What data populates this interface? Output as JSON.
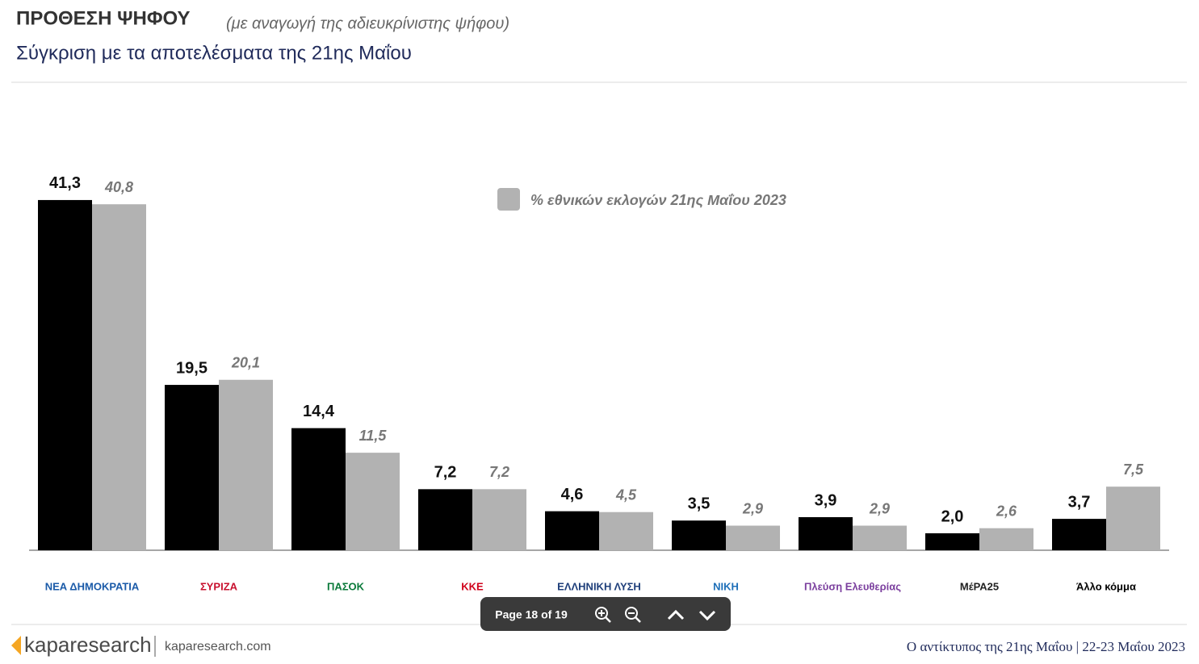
{
  "chart_data": {
    "type": "bar",
    "title": "ΠΡΟΘΕΣΗ ΨΗΦΟΥ",
    "title_note": "(με αναγωγή της αδιευκρίνιστης ψήφου)",
    "subtitle": "Σύγκριση με τα αποτελέσματα της 21ης Μαΐου",
    "categories": [
      "ΝΕΑ ΔΗΜΟΚΡΑΤΙΑ",
      "ΣΥΡΙΖΑ",
      "ΠΑΣΟΚ",
      "ΚΚΕ",
      "ΕΛΛΗΝΙΚΗ ΛΥΣΗ",
      "ΝΙΚΗ",
      "Πλεύση Ελευθερίας",
      "ΜέΡΑ25",
      "Άλλο κόμμα"
    ],
    "category_colors": [
      "#1a5aa8",
      "#c8102e",
      "#0a7a3a",
      "#d0021b",
      "#1f3f7a",
      "#1e6fb8",
      "#7b3f9e",
      "#222222",
      "#000000"
    ],
    "series": [
      {
        "color": "#000000",
        "values": [
          41.3,
          19.5,
          14.4,
          7.2,
          4.6,
          3.5,
          3.9,
          2.0,
          3.7
        ],
        "value_labels": [
          "41,3",
          "19,5",
          "14,4",
          "7,2",
          "4,6",
          "3,5",
          "3,9",
          "2,0",
          "3,7"
        ]
      },
      {
        "name": "% εθνικών εκλογών 21ης Μαΐου 2023",
        "color": "#b2b2b2",
        "values": [
          40.8,
          20.1,
          11.5,
          7.2,
          4.5,
          2.9,
          2.9,
          2.6,
          7.5
        ],
        "value_labels": [
          "40,8",
          "20,1",
          "11,5",
          "7,2",
          "4,5",
          "2,9",
          "2,9",
          "2,6",
          "7,5"
        ]
      }
    ],
    "legend": "top-center"
  },
  "footer": {
    "brand": "kaparesearch",
    "site": "kaparesearch.com",
    "caption": "Ο αντίκτυπος της 21ης Μαΐου | 22-23 Μαΐου 2023"
  },
  "viewer": {
    "page": "Page 18 of 19"
  }
}
